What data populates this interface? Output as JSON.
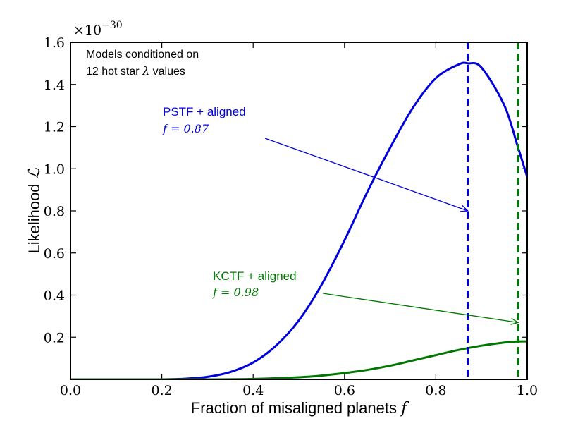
{
  "chart_data": {
    "type": "line",
    "title": "",
    "xlabel": "Fraction of misaligned planets",
    "xlabel_var": "f",
    "ylabel": "Likelihood",
    "ylabel_var": "ℒ",
    "y_multiplier": "×10",
    "y_multiplier_exp": "−30",
    "xlim": [
      0.0,
      1.0
    ],
    "ylim": [
      0.0,
      1.6
    ],
    "xticks": [
      0.0,
      0.2,
      0.4,
      0.6,
      0.8,
      1.0
    ],
    "xtick_labels": [
      "0.0",
      "0.2",
      "0.4",
      "0.6",
      "0.8",
      "1.0"
    ],
    "yticks": [
      0.2,
      0.4,
      0.6,
      0.8,
      1.0,
      1.2,
      1.4,
      1.6
    ],
    "ytick_labels": [
      "0.2",
      "0.4",
      "0.6",
      "0.8",
      "1.0",
      "1.2",
      "1.4",
      "1.6"
    ],
    "grid": false,
    "series": [
      {
        "name": "PSTF + aligned",
        "color": "#0000dd",
        "x": [
          0.0,
          0.1,
          0.2,
          0.25,
          0.3,
          0.35,
          0.4,
          0.45,
          0.5,
          0.55,
          0.6,
          0.65,
          0.7,
          0.75,
          0.8,
          0.85,
          0.87,
          0.9,
          0.95,
          0.98,
          1.0
        ],
        "y": [
          0.0,
          0.0,
          0.0,
          0.003,
          0.012,
          0.035,
          0.08,
          0.16,
          0.28,
          0.45,
          0.66,
          0.89,
          1.1,
          1.29,
          1.43,
          1.495,
          1.5,
          1.48,
          1.3,
          1.1,
          0.96
        ]
      },
      {
        "name": "KCTF + aligned",
        "color": "#007700",
        "x": [
          0.0,
          0.2,
          0.3,
          0.4,
          0.5,
          0.55,
          0.6,
          0.65,
          0.7,
          0.75,
          0.8,
          0.85,
          0.9,
          0.95,
          0.98,
          1.0
        ],
        "y": [
          0.0,
          0.0,
          0.0,
          0.002,
          0.01,
          0.018,
          0.03,
          0.045,
          0.065,
          0.09,
          0.115,
          0.14,
          0.16,
          0.175,
          0.18,
          0.18
        ]
      }
    ],
    "vlines": [
      {
        "x": 0.87,
        "color": "#0000dd",
        "style": "dashed"
      },
      {
        "x": 0.98,
        "color": "#007700",
        "style": "dashed"
      }
    ],
    "annotations": [
      {
        "id": "pstf",
        "label": "PSTF + aligned",
        "value_text": "f = 0.87",
        "color": "#0000dd",
        "arrow_to_x": 0.87,
        "arrow_to_y": 0.8
      },
      {
        "id": "kctf",
        "label": "KCTF + aligned",
        "value_text": "f = 0.98",
        "color": "#007700",
        "arrow_to_x": 0.98,
        "arrow_to_y": 0.27
      }
    ],
    "note_line1": "Models conditioned on",
    "note_line2_prefix": "12 hot star",
    "note_line2_symbol": "λ",
    "note_line2_suffix": "values"
  }
}
